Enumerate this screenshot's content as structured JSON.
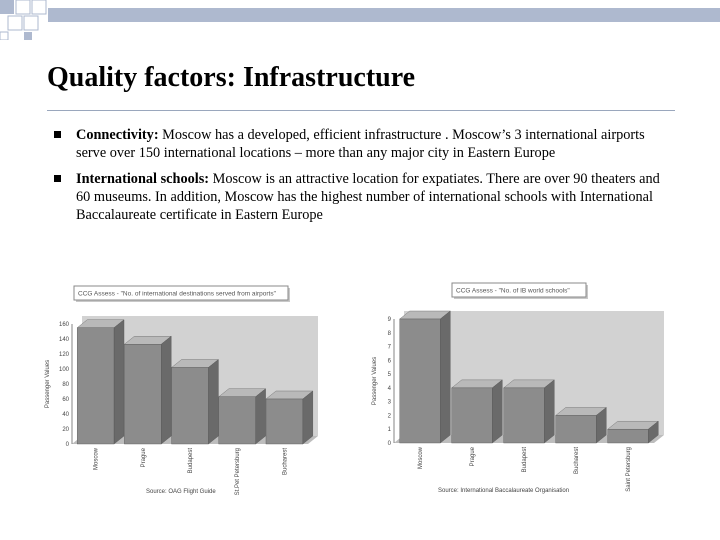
{
  "title": "Quality factors: Infrastructure",
  "bullets": [
    {
      "head": "Connectivity:",
      "text": " Moscow has a developed, efficient infrastructure . Moscow’s 3 international airports serve over 150 international locations – more than any major city in Eastern Europe"
    },
    {
      "head": "International schools:",
      "text": " Moscow is an attractive location for expatiates. There are over 90 theaters and 60 museums. In addition, Moscow has the highest number of international schools with International Baccalaureate certificate in Eastern Europe"
    }
  ],
  "colors": {
    "bar_front": "#8c8c8c",
    "bar_top": "#b9b9b9",
    "bar_side": "#6a6a6a",
    "wall": "#d2d2d2",
    "floor": "#bdbdbd",
    "bullet": "#000000",
    "decoration": "#aeb9cf"
  },
  "chart_data": [
    {
      "type": "bar",
      "annotation": "CCG Assess - \"No. of international destinations served from airports\"",
      "categories": [
        "Moscow",
        "Prague",
        "Budapest",
        "St.Pet Petersburg",
        "Bucharest"
      ],
      "values": [
        155,
        133,
        102,
        63,
        60
      ],
      "ylabel": "Passenger Values",
      "yticks": [
        "0",
        "20",
        "40",
        "60",
        "80",
        "100",
        "120",
        "140",
        "160"
      ],
      "ylim": [
        0,
        160
      ],
      "source": "Source: OAG Flight Guide"
    },
    {
      "type": "bar",
      "annotation": "CCG Assess - \"No. of IB world schools\"",
      "categories": [
        "Moscow",
        "Prague",
        "Budapest",
        "Bucharest",
        "Saint Petersburg"
      ],
      "values": [
        9,
        4,
        4,
        2,
        1
      ],
      "ylabel": "Passenger Values",
      "yticks": [
        "0",
        "1",
        "2",
        "3",
        "4",
        "5",
        "6",
        "7",
        "8",
        "9"
      ],
      "ylim": [
        0,
        9
      ],
      "source": "Source: International Baccalaureate Organisation"
    }
  ]
}
